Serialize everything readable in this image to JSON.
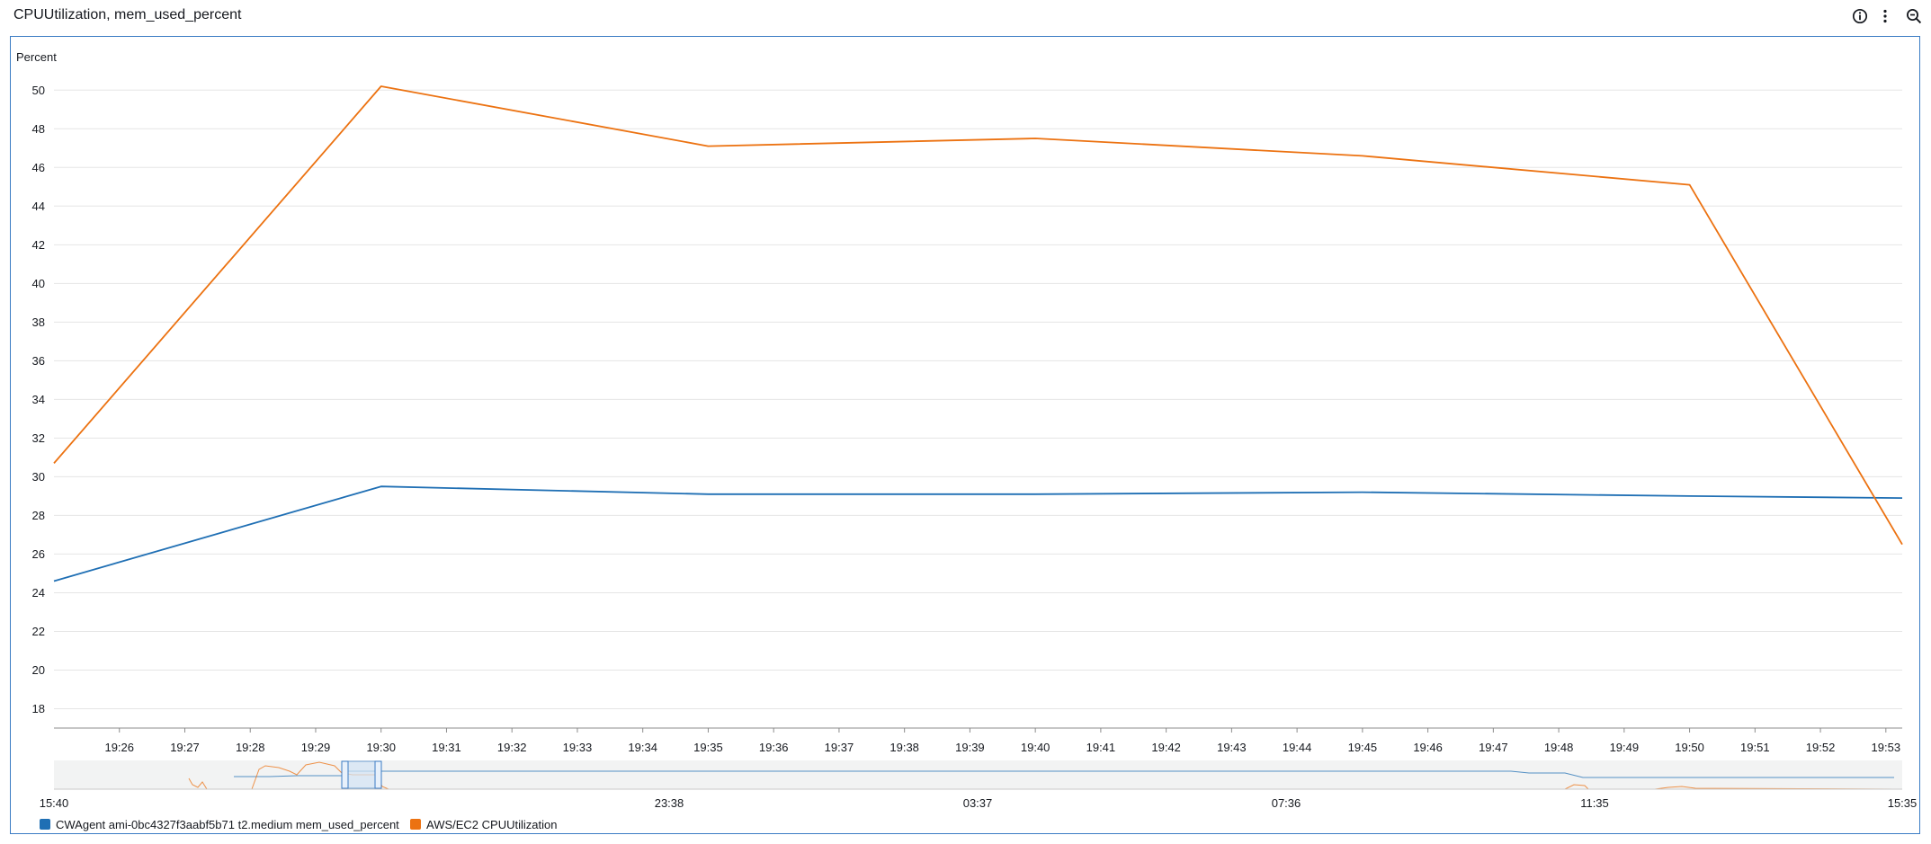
{
  "widget": {
    "title": "CPUUtilization, mem_used_percent"
  },
  "colors": {
    "cpu": "#ec7211",
    "mem": "#1f6fb4",
    "frame": "#3b7cc4",
    "grid": "#e5e5e5"
  },
  "icons": [
    "info-icon",
    "more-vertical-icon",
    "zoom-out-icon"
  ],
  "chart_data": {
    "type": "line",
    "ylabel": "Percent",
    "ylim": [
      17,
      51.5
    ],
    "y_ticks": [
      18,
      20,
      22,
      24,
      26,
      28,
      30,
      32,
      34,
      36,
      38,
      40,
      42,
      44,
      46,
      48,
      50
    ],
    "xlim": [
      "19:25:00",
      "19:53:15"
    ],
    "x_ticks": [
      "19:26",
      "19:27",
      "19:28",
      "19:29",
      "19:30",
      "19:31",
      "19:32",
      "19:33",
      "19:34",
      "19:35",
      "19:36",
      "19:37",
      "19:38",
      "19:39",
      "19:40",
      "19:41",
      "19:42",
      "19:43",
      "19:44",
      "19:45",
      "19:46",
      "19:47",
      "19:48",
      "19:49",
      "19:50",
      "19:51",
      "19:52",
      "19:53"
    ],
    "grid": true,
    "legend_position": "bottom-left",
    "series": [
      {
        "name": "CWAgent ami-0bc4327f3aabf5b71 t2.medium mem_used_percent",
        "color": "#1f6fb4",
        "x": [
          "19:25:00",
          "19:30:00",
          "19:35:00",
          "19:40:00",
          "19:45:00",
          "19:50:00",
          "19:53:15"
        ],
        "y": [
          24.6,
          29.5,
          29.1,
          29.1,
          29.2,
          29.0,
          28.9
        ]
      },
      {
        "name": "AWS/EC2 CPUUtilization",
        "color": "#ec7211",
        "x": [
          "19:25:00",
          "19:30:00",
          "19:35:00",
          "19:40:00",
          "19:45:00",
          "19:50:00",
          "19:53:15"
        ],
        "y": [
          30.7,
          50.2,
          47.1,
          47.5,
          46.6,
          45.1,
          26.5
        ]
      }
    ],
    "navigator": {
      "x_ticks": [
        "15:40",
        "23:38",
        "03:37",
        "07:36",
        "11:35",
        "15:35"
      ]
    }
  }
}
